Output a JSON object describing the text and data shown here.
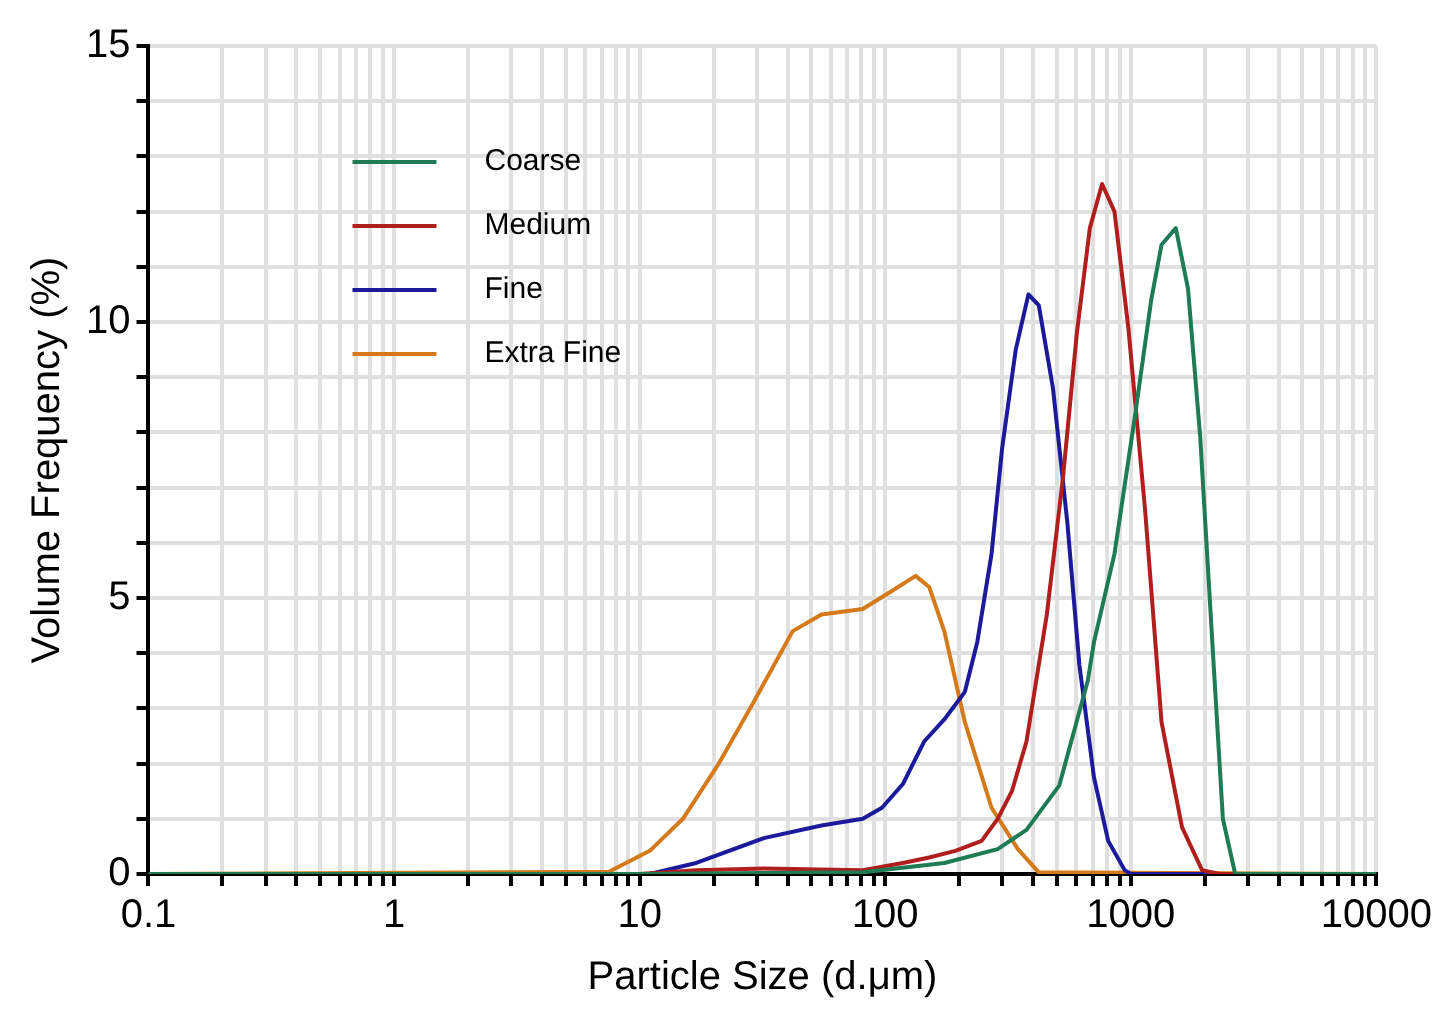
{
  "chart_data": {
    "type": "line",
    "xlabel": "Particle Size (d.μm)",
    "ylabel": "Volume Frequency (%)",
    "log": "x",
    "grid": true,
    "legend": "top left",
    "marker": "none",
    "line_style": "solid",
    "xlim": [
      0.1,
      10000
    ],
    "ylim": [
      0,
      15
    ],
    "xticks": [
      0.1,
      {
        "value": 0.2,
        "label": null
      },
      {
        "value": 0.3,
        "label": null
      },
      {
        "value": 0.4,
        "label": null
      },
      {
        "value": 0.5,
        "label": null
      },
      {
        "value": 0.6,
        "label": null
      },
      {
        "value": 0.7,
        "label": null
      },
      {
        "value": 0.8,
        "label": null
      },
      {
        "value": 0.9,
        "label": null
      },
      1,
      {
        "value": 2,
        "label": null
      },
      {
        "value": 3,
        "label": null
      },
      {
        "value": 4,
        "label": null
      },
      {
        "value": 5,
        "label": null
      },
      {
        "value": 6,
        "label": null
      },
      {
        "value": 7,
        "label": null
      },
      {
        "value": 8,
        "label": null
      },
      {
        "value": 9,
        "label": null
      },
      10,
      {
        "value": 20,
        "label": null
      },
      {
        "value": 30,
        "label": null
      },
      {
        "value": 40,
        "label": null
      },
      {
        "value": 50,
        "label": null
      },
      {
        "value": 60,
        "label": null
      },
      {
        "value": 70,
        "label": null
      },
      {
        "value": 80,
        "label": null
      },
      {
        "value": 90,
        "label": null
      },
      100,
      {
        "value": 200,
        "label": null
      },
      {
        "value": 300,
        "label": null
      },
      {
        "value": 400,
        "label": null
      },
      {
        "value": 500,
        "label": null
      },
      {
        "value": 600,
        "label": null
      },
      {
        "value": 700,
        "label": null
      },
      {
        "value": 800,
        "label": null
      },
      {
        "value": 900,
        "label": null
      },
      1000,
      {
        "value": 2000,
        "label": null
      },
      {
        "value": 3000,
        "label": null
      },
      {
        "value": 4000,
        "label": null
      },
      {
        "value": 5000,
        "label": null
      },
      {
        "value": 6000,
        "label": null
      },
      {
        "value": 7000,
        "label": null
      },
      {
        "value": 8000,
        "label": null
      },
      {
        "value": 9000,
        "label": null
      },
      10000
    ],
    "yticks": [
      0,
      {
        "value": 1,
        "label": null
      },
      {
        "value": 2,
        "label": null
      },
      {
        "value": 3,
        "label": null
      },
      {
        "value": 4,
        "label": null
      },
      5,
      {
        "value": 6,
        "label": null
      },
      {
        "value": 7,
        "label": null
      },
      {
        "value": 8,
        "label": null
      },
      {
        "value": 9,
        "label": null
      },
      10,
      {
        "value": 11,
        "label": null
      },
      {
        "value": 12,
        "label": null
      },
      {
        "value": 13,
        "label": null
      },
      {
        "value": 14,
        "label": null
      },
      15
    ],
    "series": [
      {
        "name": "Coarse",
        "color": "#1e7b55",
        "x": [
          0.1,
          10,
          81,
          174,
          287,
          376,
          511,
          668,
          708,
          858,
          1040,
          1211,
          1334,
          1525,
          1710,
          1918,
          2154,
          2371,
          2661,
          10000
        ],
        "values": [
          0,
          0,
          0.03,
          0.2,
          0.45,
          0.8,
          1.6,
          3.5,
          4.2,
          5.8,
          8.3,
          10.4,
          11.4,
          11.7,
          10.6,
          7.9,
          4.1,
          1.0,
          0,
          0
        ]
      },
      {
        "name": "Medium",
        "color": "#b01e1e",
        "x": [
          0.1,
          10,
          17,
          32,
          81,
          118,
          151,
          193,
          247,
          287,
          328,
          376,
          455,
          530,
          603,
          681,
          764,
          858,
          977,
          1143,
          1334,
          1616,
          1950,
          2300,
          10000
        ],
        "values": [
          0,
          0,
          0.07,
          0.1,
          0.07,
          0.2,
          0.3,
          0.42,
          0.6,
          1.0,
          1.5,
          2.4,
          4.7,
          7.2,
          9.8,
          11.7,
          12.5,
          12.0,
          9.9,
          6.6,
          2.75,
          0.85,
          0.07,
          0,
          0
        ]
      },
      {
        "name": "Fine",
        "color": "#1a1a9a",
        "x": [
          0.1,
          11,
          17,
          32,
          55,
          81,
          97,
          118,
          144,
          174,
          211,
          237,
          271,
          299,
          340,
          383,
          422,
          482,
          552,
          617,
          708,
          809,
          944,
          1000,
          10000
        ],
        "values": [
          0,
          0,
          0.2,
          0.65,
          0.88,
          1.0,
          1.2,
          1.63,
          2.4,
          2.8,
          3.3,
          4.2,
          5.8,
          7.7,
          9.5,
          10.5,
          10.3,
          8.8,
          6.35,
          3.8,
          1.75,
          0.6,
          0.07,
          0,
          0
        ]
      },
      {
        "name": "Extra Fine",
        "color": "#d47a1a",
        "x": [
          0.1,
          7.5,
          11,
          15,
          21,
          29,
          42,
          55,
          81,
          104,
          133,
          151,
          174,
          211,
          271,
          347,
          422,
          10000
        ],
        "values": [
          0,
          0.04,
          0.42,
          1.0,
          2.0,
          3.1,
          4.4,
          4.7,
          4.8,
          5.1,
          5.4,
          5.2,
          4.4,
          2.75,
          1.2,
          0.45,
          0.03,
          0
        ]
      }
    ]
  }
}
